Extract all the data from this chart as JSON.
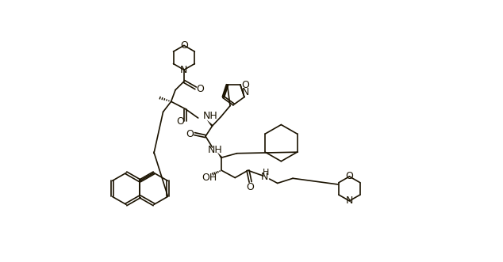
{
  "bg_color": "#ffffff",
  "line_color": "#1a1200",
  "lw": 1.2,
  "figsize": [
    6.34,
    3.31
  ],
  "dpi": 100,
  "xlim": [
    0,
    634
  ],
  "ylim": [
    0,
    331
  ]
}
